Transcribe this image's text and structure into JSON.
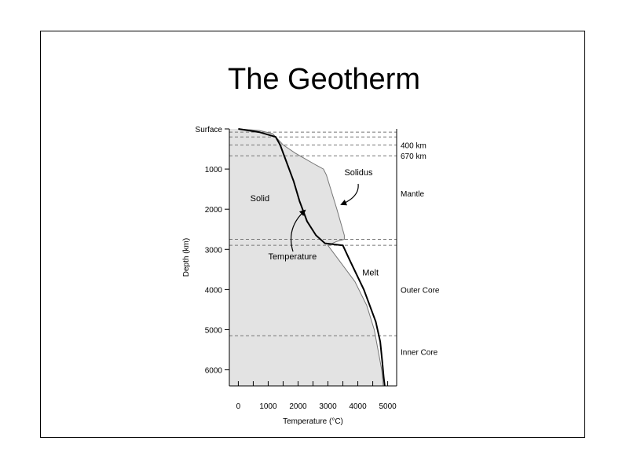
{
  "slide": {
    "title": "The Geotherm"
  },
  "chart_data": {
    "type": "line",
    "title": "",
    "xlabel": "Temperature (°C)",
    "ylabel": "Depth (km)",
    "xlim": [
      -300,
      5300
    ],
    "ylim": [
      0,
      6400
    ],
    "y_inverted": true,
    "x_ticks": [
      0,
      1000,
      2000,
      3000,
      4000,
      5000
    ],
    "x_tick_labels": [
      "0",
      "1000",
      "2000",
      "3000",
      "4000",
      "5000"
    ],
    "y_ticks": [
      1000,
      2000,
      3000,
      4000,
      5000,
      6000
    ],
    "y_tick_labels": [
      "1000",
      "2000",
      "3000",
      "4000",
      "5000",
      "6000"
    ],
    "surface_label": "Surface",
    "grid": false,
    "series": [
      {
        "name": "Temperature",
        "color": "#000000",
        "x": [
          0,
          700,
          1250,
          1400,
          1600,
          1850,
          2050,
          2300,
          2600,
          2900,
          3500,
          3750,
          4200,
          4600,
          4750,
          4820,
          4870,
          4900
        ],
        "y": [
          0,
          80,
          200,
          400,
          800,
          1300,
          1800,
          2300,
          2650,
          2850,
          2900,
          3300,
          4000,
          4800,
          5300,
          5800,
          6200,
          6400
        ]
      },
      {
        "name": "Solidus",
        "color": "#777777",
        "x": [
          0,
          700,
          1150,
          1500,
          1900,
          2600,
          2850,
          2950,
          3300,
          3550,
          3550,
          3300,
          3000,
          3400,
          3900,
          4300,
          4550,
          4700,
          4800,
          4850
        ],
        "y": [
          0,
          40,
          120,
          400,
          600,
          900,
          1000,
          1150,
          2000,
          2650,
          2750,
          2800,
          2900,
          3300,
          3800,
          4400,
          5000,
          5600,
          6000,
          6400
        ]
      }
    ],
    "region_labels": [
      "Solid",
      "Melt"
    ],
    "boundaries": [
      {
        "depth": 80,
        "label": ""
      },
      {
        "depth": 200,
        "label": ""
      },
      {
        "depth": 400,
        "label": "400 km"
      },
      {
        "depth": 670,
        "label": "670 km"
      },
      {
        "depth": 2750,
        "label": ""
      },
      {
        "depth": 2900,
        "label": ""
      },
      {
        "depth": 5150,
        "label": ""
      }
    ],
    "zone_labels": [
      {
        "label": "Mantle",
        "depth": 1600
      },
      {
        "label": "Outer Core",
        "depth": 4000
      },
      {
        "label": "Inner Core",
        "depth": 5550
      }
    ],
    "annotations": [
      "Solidus",
      "Temperature"
    ],
    "solid_fill": "#e3e3e3"
  }
}
